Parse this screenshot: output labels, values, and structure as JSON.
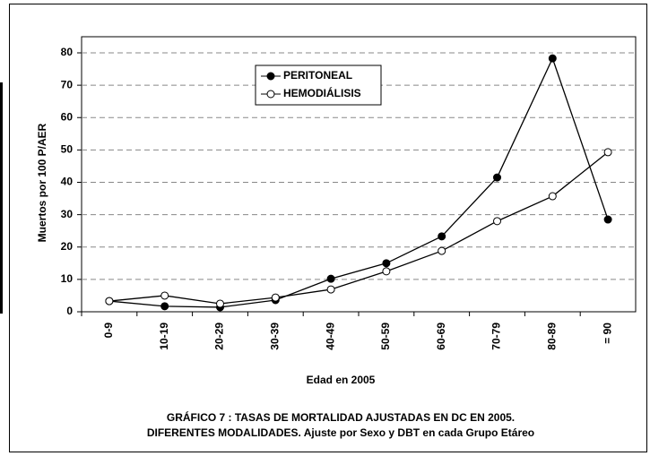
{
  "chart_data": {
    "type": "line",
    "title": "GRÁFICO 7 :  TASAS DE MORTALIDAD AJUSTADAS EN  DC EN  2005.",
    "subtitle": "DIFERENTES MODALIDADES. Ajuste por Sexo y DBT en cada Grupo Etáreo",
    "x_label": "Edad  en 2005",
    "y_label": "Muertos por 100 P/AER",
    "categories": [
      "0-9",
      "10-19",
      "20-29",
      "30-39",
      "40-49",
      "50-59",
      "60-69",
      "70-79",
      "80-89",
      "= 90"
    ],
    "series": [
      {
        "name": "PERITONEAL",
        "color": "#000000",
        "marker": "filled",
        "values": [
          3.3,
          1.7,
          1.4,
          3.6,
          10.2,
          15,
          23.3,
          41.5,
          78.3,
          28.5
        ]
      },
      {
        "name": "HEMODIÁLISIS",
        "color": "#000000",
        "marker": "open",
        "values": [
          3.3,
          5,
          2.5,
          4.4,
          6.9,
          12.5,
          18.8,
          28,
          35.7,
          49.3
        ]
      }
    ],
    "ylim": [
      0,
      80
    ],
    "yticks": [
      0,
      10,
      20,
      30,
      40,
      50,
      60,
      70,
      80
    ],
    "grid": true,
    "legend": "top-center"
  }
}
